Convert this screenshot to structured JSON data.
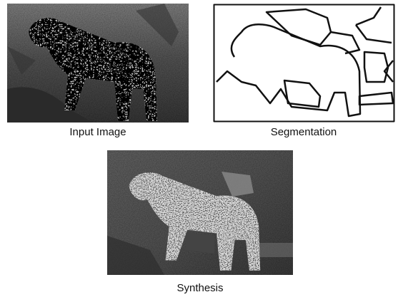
{
  "figure": {
    "panels": [
      {
        "caption": "Input Image"
      },
      {
        "caption": "Segmentation"
      },
      {
        "caption": "Synthesis"
      }
    ]
  }
}
